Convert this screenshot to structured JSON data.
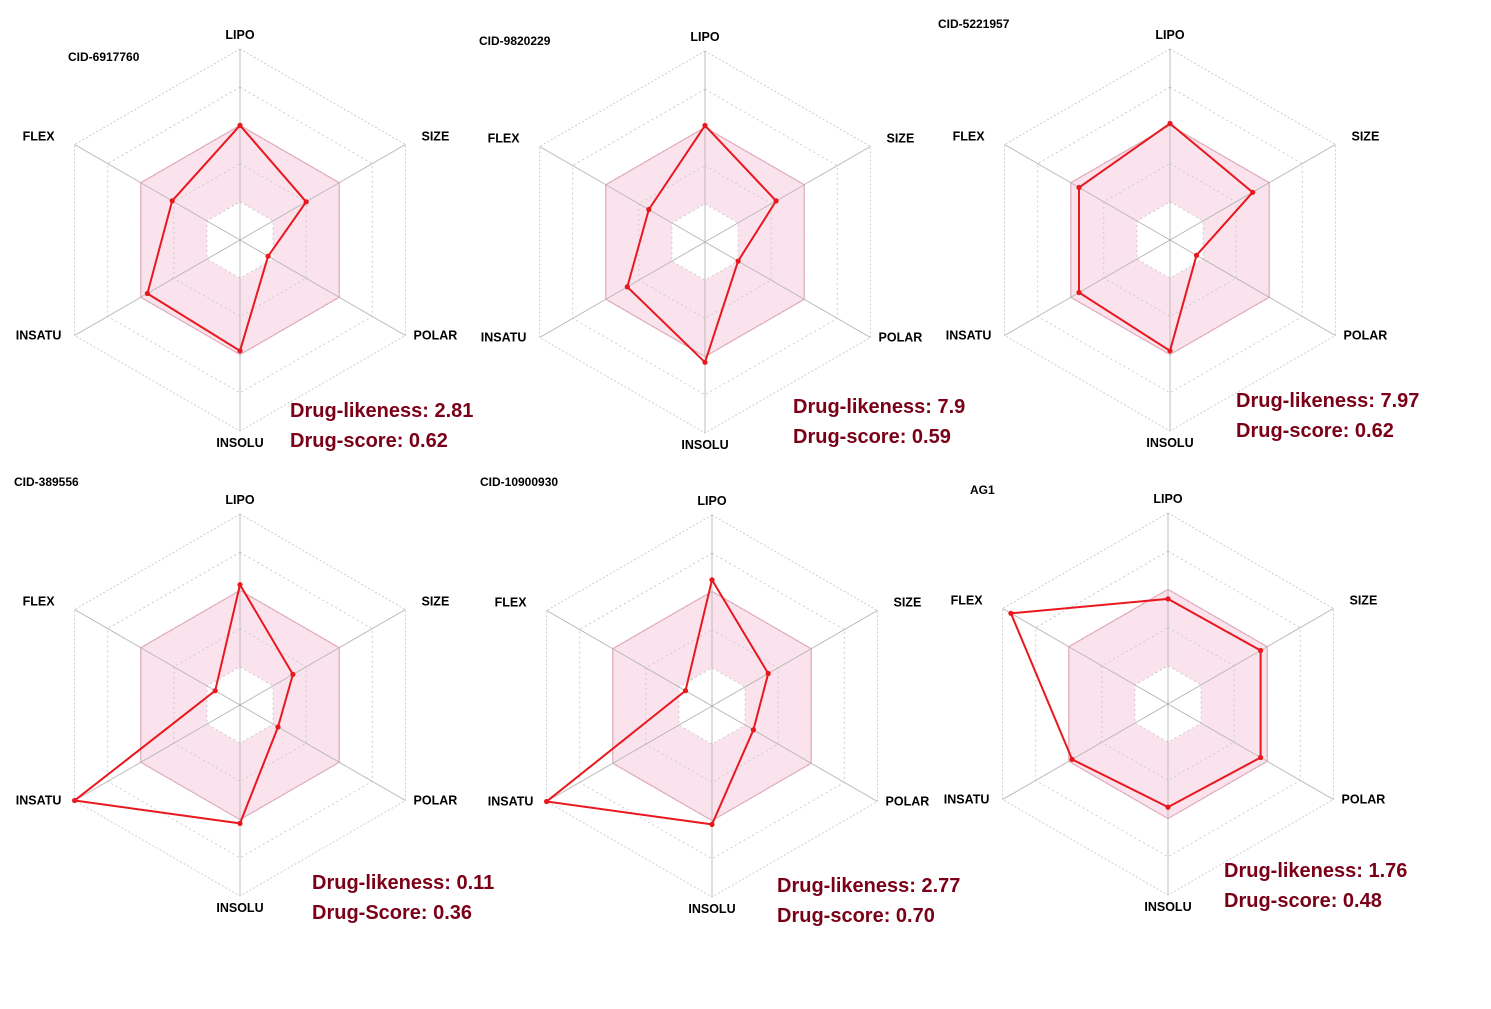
{
  "axes": [
    "LIPO",
    "SIZE",
    "POLAR",
    "INSOLU",
    "INSATU",
    "FLEX"
  ],
  "colors": {
    "series_line": "#e8181e",
    "optimal_fill": "#fbe3ee",
    "optimal_edge": "#e7a0b4",
    "grid": "#c8c8c8",
    "score_text": "#7a0018"
  },
  "chart_data": [
    {
      "type": "radar",
      "title": "CID-6917760",
      "axes": [
        "LIPO",
        "SIZE",
        "POLAR",
        "INSOLU",
        "INSATU",
        "FLEX"
      ],
      "rlim": [
        0,
        1
      ],
      "grid_levels": [
        0.2,
        0.4,
        0.6,
        0.8,
        1.0
      ],
      "optimal_range": [
        0.6,
        0.6,
        0.6,
        0.6,
        0.6,
        0.6
      ],
      "optimal_inner": [
        0.2,
        0.2,
        0.2,
        0.2,
        0.2,
        0.2
      ],
      "values": [
        0.6,
        0.4,
        0.17,
        0.58,
        0.56,
        0.41
      ],
      "drug_likeness_label": "Drug-likeness: 2.81",
      "drug_score_label": "Drug-score: 0.62"
    },
    {
      "type": "radar",
      "title": "CID-9820229",
      "axes": [
        "LIPO",
        "SIZE",
        "POLAR",
        "INSOLU",
        "INSATU",
        "FLEX"
      ],
      "rlim": [
        0,
        1
      ],
      "grid_levels": [
        0.2,
        0.4,
        0.6,
        0.8,
        1.0
      ],
      "optimal_range": [
        0.6,
        0.6,
        0.6,
        0.6,
        0.6,
        0.6
      ],
      "optimal_inner": [
        0.2,
        0.2,
        0.2,
        0.2,
        0.2,
        0.2
      ],
      "values": [
        0.61,
        0.43,
        0.2,
        0.63,
        0.47,
        0.34
      ],
      "drug_likeness_label": "Drug-likeness: 7.9",
      "drug_score_label": "Drug-score: 0.59"
    },
    {
      "type": "radar",
      "title": "CID-5221957",
      "axes": [
        "LIPO",
        "SIZE",
        "POLAR",
        "INSOLU",
        "INSATU",
        "FLEX"
      ],
      "rlim": [
        0,
        1
      ],
      "grid_levels": [
        0.2,
        0.4,
        0.6,
        0.8,
        1.0
      ],
      "optimal_range": [
        0.6,
        0.6,
        0.6,
        0.6,
        0.6,
        0.6
      ],
      "optimal_inner": [
        0.2,
        0.2,
        0.2,
        0.2,
        0.2,
        0.2
      ],
      "values": [
        0.61,
        0.5,
        0.16,
        0.58,
        0.55,
        0.55
      ],
      "drug_likeness_label": "Drug-likeness: 7.97",
      "drug_score_label": "Drug-score: 0.62"
    },
    {
      "type": "radar",
      "title": "CID-389556",
      "axes": [
        "LIPO",
        "SIZE",
        "POLAR",
        "INSOLU",
        "INSATU",
        "FLEX"
      ],
      "rlim": [
        0,
        1
      ],
      "grid_levels": [
        0.2,
        0.4,
        0.6,
        0.8,
        1.0
      ],
      "optimal_range": [
        0.6,
        0.6,
        0.6,
        0.6,
        0.6,
        0.6
      ],
      "optimal_inner": [
        0.2,
        0.2,
        0.2,
        0.2,
        0.2,
        0.2
      ],
      "values": [
        0.63,
        0.32,
        0.23,
        0.62,
        1.0,
        0.15
      ],
      "drug_likeness_label": "Drug-likeness: 0.11",
      "drug_score_label": "Drug-Score: 0.36"
    },
    {
      "type": "radar",
      "title": "CID-10900930",
      "axes": [
        "LIPO",
        "SIZE",
        "POLAR",
        "INSOLU",
        "INSATU",
        "FLEX"
      ],
      "rlim": [
        0,
        1
      ],
      "grid_levels": [
        0.2,
        0.4,
        0.6,
        0.8,
        1.0
      ],
      "optimal_range": [
        0.6,
        0.6,
        0.6,
        0.6,
        0.6,
        0.6
      ],
      "optimal_inner": [
        0.2,
        0.2,
        0.2,
        0.2,
        0.2,
        0.2
      ],
      "values": [
        0.66,
        0.34,
        0.25,
        0.62,
        1.0,
        0.16
      ],
      "drug_likeness_label": "Drug-likeness: 2.77",
      "drug_score_label": "Drug-score: 0.70"
    },
    {
      "type": "radar",
      "title": "AG1",
      "axes": [
        "LIPO",
        "SIZE",
        "POLAR",
        "INSOLU",
        "INSATU",
        "FLEX"
      ],
      "rlim": [
        0,
        1
      ],
      "grid_levels": [
        0.2,
        0.4,
        0.6,
        0.8,
        1.0
      ],
      "optimal_range": [
        0.6,
        0.6,
        0.6,
        0.6,
        0.6,
        0.6
      ],
      "optimal_inner": [
        0.2,
        0.2,
        0.2,
        0.2,
        0.2,
        0.2
      ],
      "values": [
        0.55,
        0.56,
        0.56,
        0.54,
        0.58,
        0.95
      ],
      "drug_likeness_label": "Drug-likeness: 1.76",
      "drug_score_label": "Drug-score: 0.48"
    }
  ]
}
